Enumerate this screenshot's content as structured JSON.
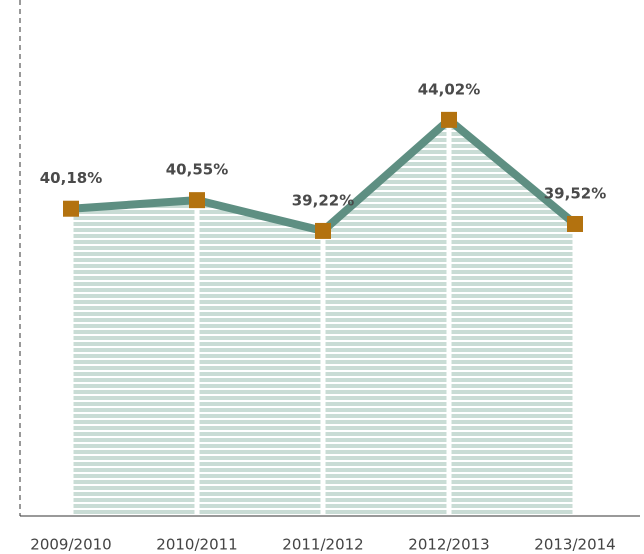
{
  "chart_data": {
    "type": "line",
    "categories": [
      "2009/2010",
      "2010/2011",
      "2011/2012",
      "2012/2013",
      "2013/2014"
    ],
    "series": [
      {
        "color": "#5e8f82",
        "values": [
          40.18,
          40.55,
          39.22,
          44.02,
          39.52
        ],
        "value_labels": [
          "40,18%",
          "40,55%",
          "39,22%",
          "44,02%",
          "39,52%"
        ]
      }
    ],
    "marker_color": "#b3720f",
    "area": true,
    "ylim": [
      26.9,
      49.2
    ]
  }
}
